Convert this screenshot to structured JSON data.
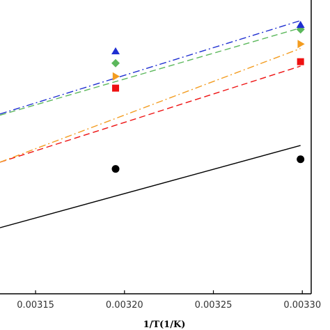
{
  "chart_data": {
    "type": "scatter",
    "title": "",
    "xlabel": "1/T(1/K)",
    "ylabel": "",
    "xlim": [
      0.00313,
      0.003305
    ],
    "ylim": [
      0,
      1
    ],
    "xticks": [
      0.00315,
      0.0032,
      0.00325,
      0.0033
    ],
    "xtick_labels": [
      "0.00315",
      "0.00320",
      "0.00325",
      "0.00330"
    ],
    "grid": false,
    "series": [
      {
        "color": "#000000",
        "marker": "circle",
        "line_style": "solid",
        "points": [
          {
            "x": 0.003195,
            "y": 0.425
          },
          {
            "x": 0.003299,
            "y": 0.458
          }
        ],
        "fit": [
          {
            "x": 0.00313,
            "y": 0.225
          },
          {
            "x": 0.003299,
            "y": 0.505
          }
        ]
      },
      {
        "color": "#ee1111",
        "marker": "square",
        "line_style": "dashed",
        "points": [
          {
            "x": 0.003195,
            "y": 0.7
          },
          {
            "x": 0.003299,
            "y": 0.79
          }
        ],
        "fit": [
          {
            "x": 0.00313,
            "y": 0.448
          },
          {
            "x": 0.003299,
            "y": 0.775
          }
        ]
      },
      {
        "color": "#f39c1f",
        "marker": "triangle-right",
        "line_style": "dashdot",
        "points": [
          {
            "x": 0.003195,
            "y": 0.74
          },
          {
            "x": 0.003299,
            "y": 0.85
          }
        ],
        "fit": [
          {
            "x": 0.00313,
            "y": 0.448
          },
          {
            "x": 0.003299,
            "y": 0.835
          }
        ]
      },
      {
        "color": "#5cb85c",
        "marker": "diamond",
        "line_style": "dashed",
        "points": [
          {
            "x": 0.003195,
            "y": 0.785
          },
          {
            "x": 0.003299,
            "y": 0.9
          }
        ],
        "fit": [
          {
            "x": 0.00313,
            "y": 0.608
          },
          {
            "x": 0.003299,
            "y": 0.905
          }
        ]
      },
      {
        "color": "#1f2fd1",
        "marker": "triangle-up",
        "line_style": "dashdot",
        "points": [
          {
            "x": 0.003195,
            "y": 0.825
          },
          {
            "x": 0.003299,
            "y": 0.915
          }
        ],
        "fit": [
          {
            "x": 0.00313,
            "y": 0.612
          },
          {
            "x": 0.003299,
            "y": 0.93
          }
        ]
      }
    ]
  }
}
